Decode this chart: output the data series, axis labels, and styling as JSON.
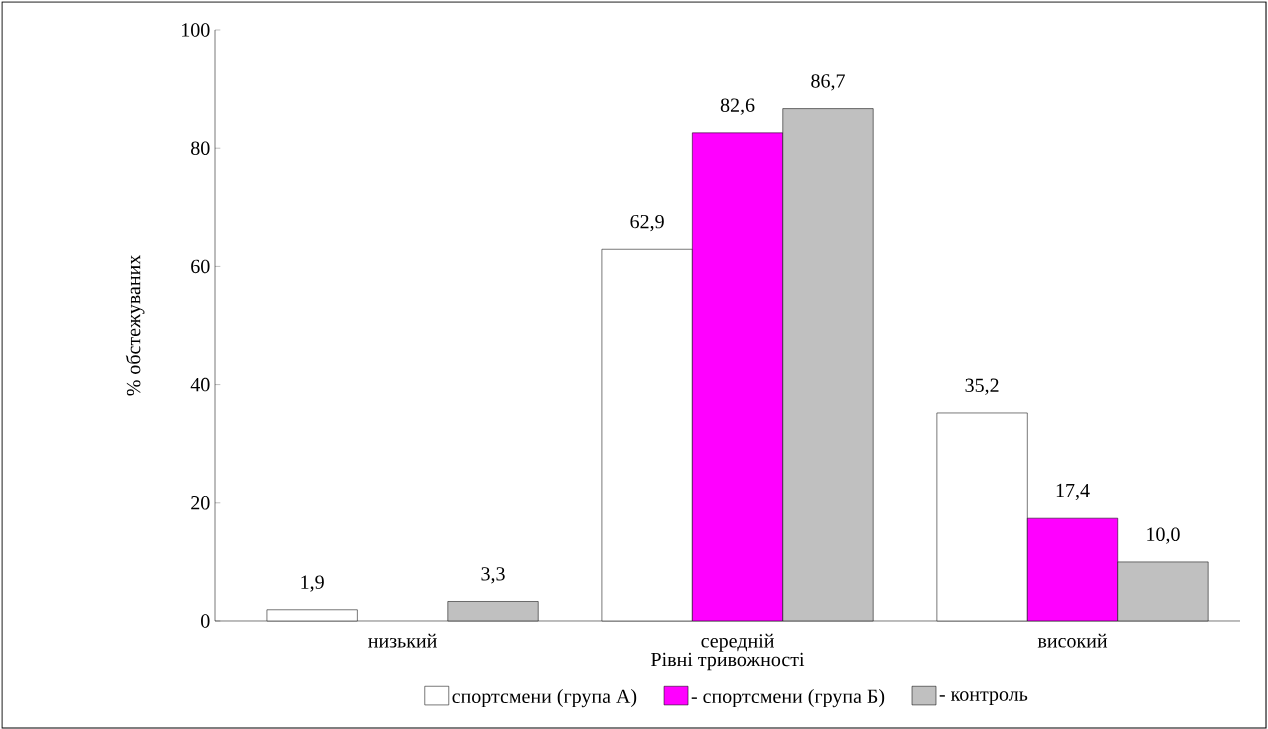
{
  "chart_data": {
    "type": "bar",
    "xlabel": "Рівні тривожності",
    "ylabel": "% обстежуваних",
    "categories": [
      "низький",
      "середній",
      "високий"
    ],
    "series": [
      {
        "name": "спортсмени (група А)",
        "color": "#ffffff",
        "values": [
          1.9,
          62.9,
          35.2
        ],
        "value_labels": [
          "1,9",
          "62,9",
          "35,2"
        ]
      },
      {
        "name": "- спортсмени (група Б)",
        "color": "#ff00ff",
        "values": [
          null,
          82.6,
          17.4
        ],
        "value_labels": [
          null,
          "82,6",
          "17,4"
        ]
      },
      {
        "name": "- контроль",
        "color": "#c0c0c0",
        "values": [
          3.3,
          86.7,
          10.0
        ],
        "value_labels": [
          "3,3",
          "86,7",
          "10,0"
        ]
      }
    ],
    "ylim": [
      0,
      100
    ],
    "yticks": [
      0,
      20,
      40,
      60,
      80,
      100
    ],
    "grid": false,
    "legend": "bottom"
  }
}
